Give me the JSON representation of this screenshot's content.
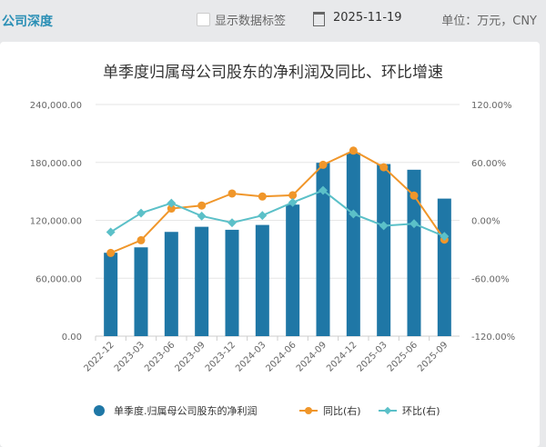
{
  "header": {
    "brand": "公司深度",
    "show_labels": "显示数据标签",
    "date": "2025-11-19",
    "unit": "单位：万元，CNY"
  },
  "chart_data": {
    "type": "bar+line",
    "title": "单季度归属母公司股东的净利润及同比、环比增速",
    "categories": [
      "2022-12",
      "2023-03",
      "2023-06",
      "2023-09",
      "2023-12",
      "2024-03",
      "2024-06",
      "2024-09",
      "2024-12",
      "2025-03",
      "2025-06",
      "2025-09"
    ],
    "left_axis": {
      "ticks": [
        "0.00",
        "60,000.00",
        "120,000.00",
        "180,000.00",
        "240,000.00"
      ],
      "range": [
        0,
        240000
      ]
    },
    "right_axis": {
      "ticks": [
        "-120.00%",
        "-60.00%",
        "0.00%",
        "60.00%",
        "120.00%"
      ],
      "range": [
        -120,
        120
      ]
    },
    "series": [
      {
        "name": "单季度.归属母公司股东的净利润",
        "type": "bar",
        "axis": "left",
        "color": "#1f77a6",
        "values": [
          86400,
          92000,
          108000,
          113300,
          110200,
          115200,
          136300,
          179600,
          190000,
          178300,
          172400,
          142500
        ]
      },
      {
        "name": "同比(右)",
        "type": "line",
        "axis": "right",
        "color": "#f0962a",
        "values": [
          -33.8,
          -20.6,
          12.2,
          15.3,
          27.8,
          24.7,
          26.0,
          57.5,
          72.2,
          55.0,
          25.6,
          -20.0
        ]
      },
      {
        "name": "环比(右)",
        "type": "line",
        "axis": "right",
        "color": "#5bc0c8",
        "values": [
          -12.2,
          7.5,
          17.8,
          4.4,
          -2.5,
          5.0,
          18.5,
          31.0,
          6.6,
          -5.6,
          -3.5,
          -16.6
        ]
      }
    ],
    "grid": true,
    "legend": "bottom"
  }
}
